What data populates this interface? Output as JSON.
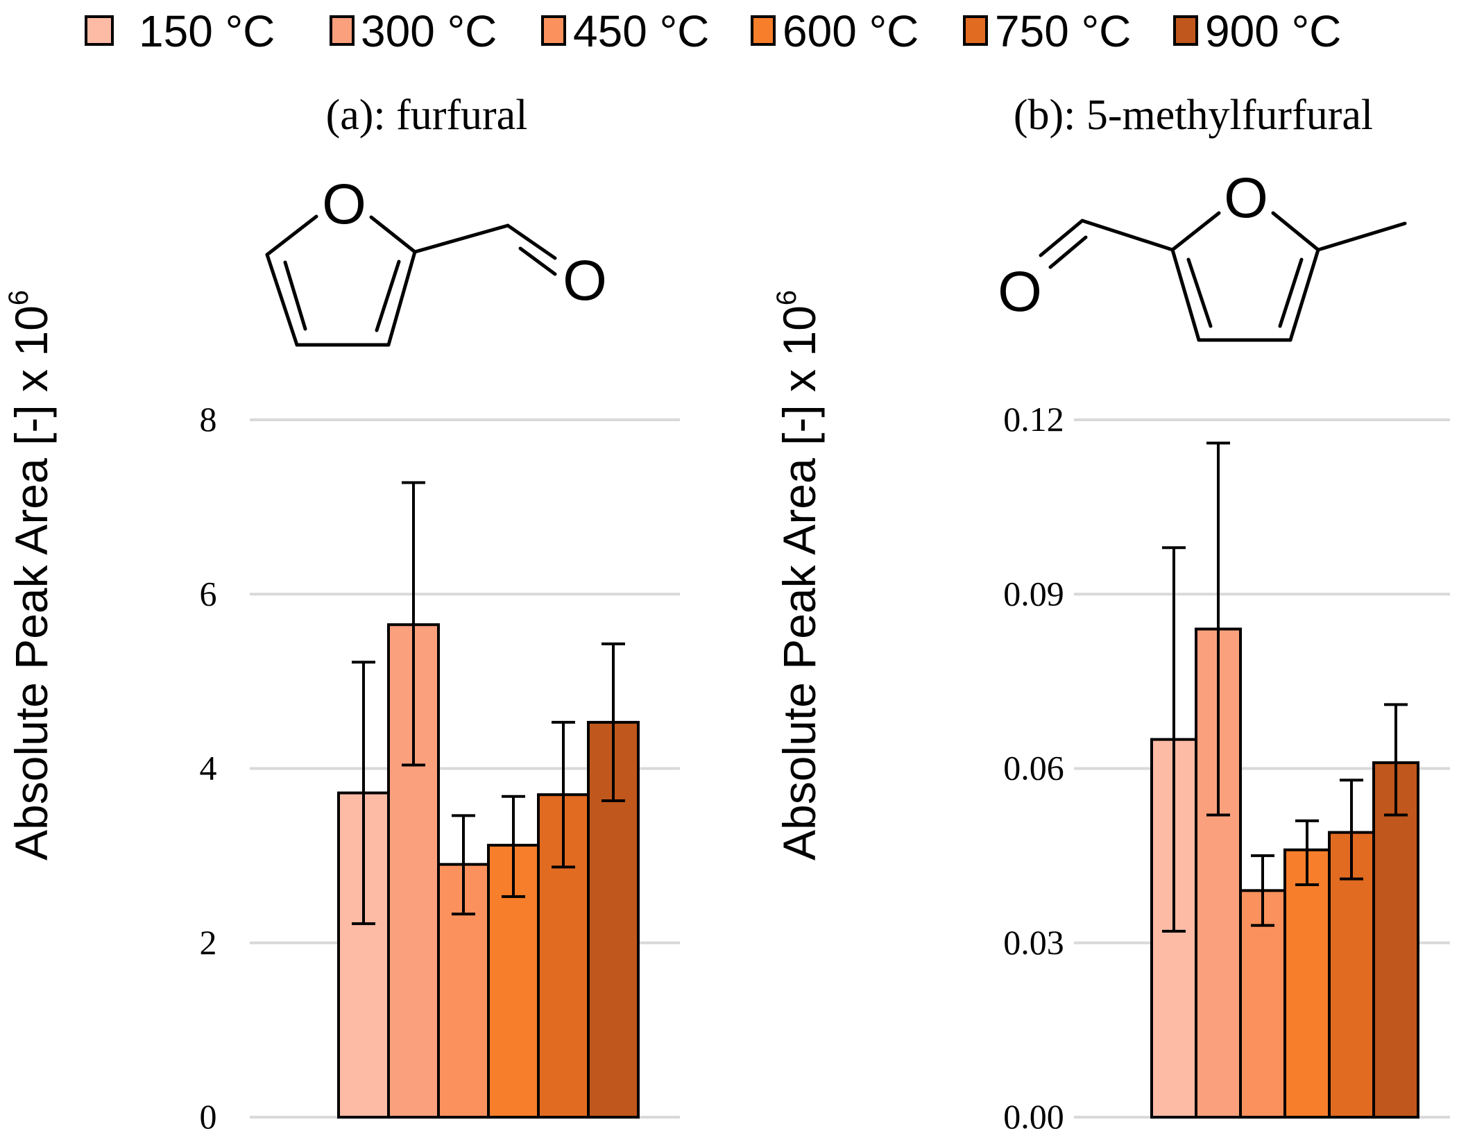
{
  "legend": {
    "items": [
      {
        "label": "150 °C",
        "color": "#FDBBA6"
      },
      {
        "label": "300 °C",
        "color": "#FBA07D"
      },
      {
        "label": "450 °C",
        "color": "#FB925D"
      },
      {
        "label": "600 °C",
        "color": "#F77E2A"
      },
      {
        "label": "750 °C",
        "color": "#E26B22"
      },
      {
        "label": "900 °C",
        "color": "#C0571C"
      }
    ]
  },
  "molecules": {
    "furfural": {
      "o_ring": "O",
      "o_carbonyl": "O"
    },
    "methylfurfural": {
      "o_ring": "O",
      "o_carbonyl": "O"
    }
  },
  "chart_data": [
    {
      "type": "bar",
      "title": "(a): furfural",
      "xlabel": "",
      "ylabel": "Absolute Peak Area [-] x 10",
      "ylabel_sup": "6",
      "ylim": [
        0,
        8
      ],
      "yticks": [
        "0",
        "2",
        "4",
        "6",
        "8"
      ],
      "grid": true,
      "series": [
        {
          "name": "150 °C",
          "value": 3.72,
          "err_low": 2.22,
          "err_high": 5.22
        },
        {
          "name": "300 °C",
          "value": 5.65,
          "err_low": 4.04,
          "err_high": 7.28
        },
        {
          "name": "450 °C",
          "value": 2.9,
          "err_low": 2.33,
          "err_high": 3.46
        },
        {
          "name": "600 °C",
          "value": 3.12,
          "err_low": 2.53,
          "err_high": 3.68
        },
        {
          "name": "750 °C",
          "value": 3.7,
          "err_low": 2.87,
          "err_high": 4.53
        },
        {
          "name": "900 °C",
          "value": 4.53,
          "err_low": 3.63,
          "err_high": 5.43
        }
      ]
    },
    {
      "type": "bar",
      "title": "(b): 5-methylfurfural",
      "xlabel": "",
      "ylabel": "Absolute Peak Area [-] x 10",
      "ylabel_sup": "6",
      "ylim": [
        0,
        0.12
      ],
      "yticks": [
        "0.00",
        "0.03",
        "0.06",
        "0.09",
        "0.12"
      ],
      "grid": true,
      "series": [
        {
          "name": "150 °C",
          "value": 0.065,
          "err_low": 0.032,
          "err_high": 0.098
        },
        {
          "name": "300 °C",
          "value": 0.084,
          "err_low": 0.052,
          "err_high": 0.116
        },
        {
          "name": "450 °C",
          "value": 0.039,
          "err_low": 0.033,
          "err_high": 0.045
        },
        {
          "name": "600 °C",
          "value": 0.046,
          "err_low": 0.04,
          "err_high": 0.051
        },
        {
          "name": "750 °C",
          "value": 0.049,
          "err_low": 0.041,
          "err_high": 0.058
        },
        {
          "name": "900 °C",
          "value": 0.061,
          "err_low": 0.052,
          "err_high": 0.071
        }
      ]
    }
  ]
}
